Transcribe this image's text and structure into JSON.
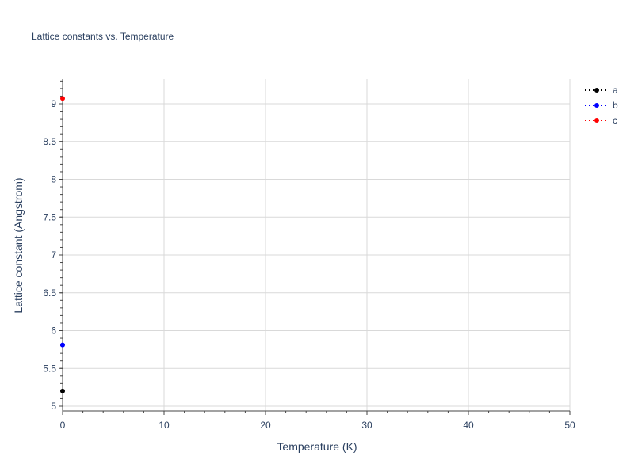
{
  "chart_data": {
    "type": "line",
    "title": "Lattice constants vs. Temperature",
    "xlabel": "Temperature (K)",
    "ylabel": "Lattice constant (Angstrom)",
    "xlim": [
      0,
      50
    ],
    "ylim": [
      4.94,
      9.33
    ],
    "xticks": [
      0,
      10,
      20,
      30,
      40,
      50
    ],
    "yticks": [
      5,
      5.5,
      6,
      6.5,
      7,
      7.5,
      8,
      8.5,
      9
    ],
    "grid": true,
    "legend_placement": "top-right",
    "series": [
      {
        "name": "a",
        "color": "#000000",
        "x": [
          0
        ],
        "y": [
          5.2
        ]
      },
      {
        "name": "b",
        "color": "#0000ff",
        "x": [
          0
        ],
        "y": [
          5.81
        ]
      },
      {
        "name": "c",
        "color": "#ff0000",
        "x": [
          0
        ],
        "y": [
          9.07
        ]
      }
    ]
  }
}
